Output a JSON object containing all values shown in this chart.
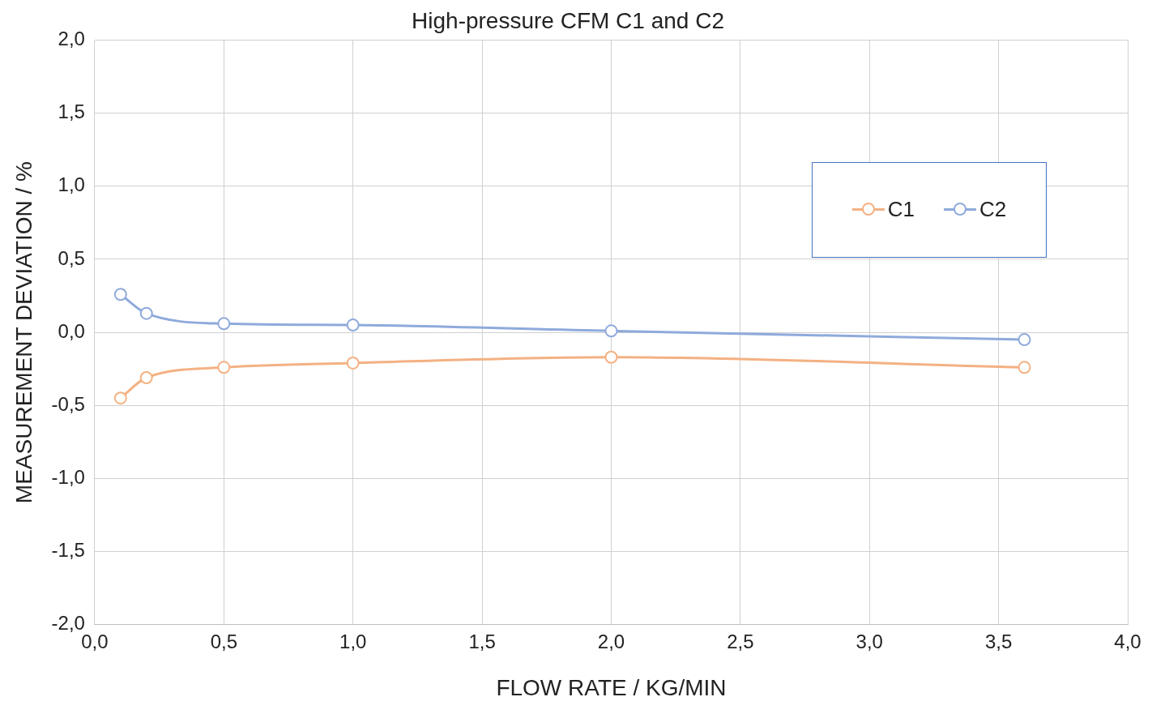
{
  "chart_data": {
    "type": "line",
    "title": "High-pressure CFM C1 and C2",
    "xlabel": "FLOW RATE / KG/MIN",
    "ylabel": "MEASUREMENT DEVIATION / %",
    "x": [
      0.1,
      0.2,
      0.5,
      1.0,
      2.0,
      3.6
    ],
    "series": [
      {
        "name": "C1",
        "color": "#f4b183",
        "values": [
          -0.45,
          -0.31,
          -0.24,
          -0.21,
          -0.17,
          -0.24
        ]
      },
      {
        "name": "C2",
        "color": "#8faadc",
        "values": [
          0.26,
          0.13,
          0.06,
          0.05,
          0.01,
          -0.05
        ]
      }
    ],
    "xlim": [
      0,
      4
    ],
    "xticks": [
      {
        "value": 0,
        "label": "0,0"
      },
      {
        "value": 0.5,
        "label": "0,5"
      },
      {
        "value": 1,
        "label": "1,0"
      },
      {
        "value": 1.5,
        "label": "1,5"
      },
      {
        "value": 2,
        "label": "2,0"
      },
      {
        "value": 2.5,
        "label": "2,5"
      },
      {
        "value": 3,
        "label": "3,0"
      },
      {
        "value": 3.5,
        "label": "3,5"
      },
      {
        "value": 4,
        "label": "4,0"
      }
    ],
    "ylim": [
      -2,
      2
    ],
    "yticks": [
      {
        "value": -2,
        "label": "-2,0"
      },
      {
        "value": -1.5,
        "label": "-1,5"
      },
      {
        "value": -1,
        "label": "-1,0"
      },
      {
        "value": -0.5,
        "label": "-0,5"
      },
      {
        "value": 0,
        "label": "0,0"
      },
      {
        "value": 0.5,
        "label": "0,5"
      },
      {
        "value": 1,
        "label": "1,0"
      },
      {
        "value": 1.5,
        "label": "1,5"
      },
      {
        "value": 2,
        "label": "2,0"
      }
    ],
    "grid": true,
    "legend": "top right",
    "marker": "circle",
    "line_style": "solid"
  }
}
